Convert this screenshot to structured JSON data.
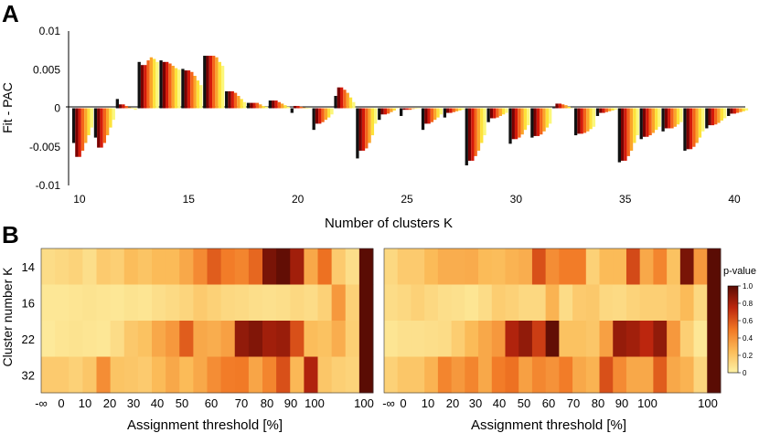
{
  "chart_data": [
    {
      "type": "bar",
      "panel_letter": "A",
      "title": "",
      "xlabel": "Number of clusters K",
      "ylabel": "Fit - PAC",
      "ylim": [
        -0.01,
        0.01
      ],
      "ytick_labels": [
        "0.01",
        "0.005",
        "0",
        "-0.005",
        "-0.01"
      ],
      "yticks": [
        0.01,
        0.005,
        0,
        -0.005,
        -0.01
      ],
      "xtick_labels": [
        "10",
        "15",
        "20",
        "25",
        "30",
        "35",
        "40"
      ],
      "xticks": [
        10,
        15,
        20,
        25,
        30,
        35,
        40
      ],
      "xlim": [
        9.5,
        40.5
      ],
      "grid": false,
      "series_colors": [
        "#111111",
        "#7a0000",
        "#d41a0a",
        "#f4641a",
        "#fba52a",
        "#fde23a",
        "#fbf77a"
      ],
      "categories": [
        10,
        11,
        12,
        13,
        14,
        15,
        16,
        17,
        18,
        19,
        20,
        21,
        22,
        23,
        24,
        25,
        26,
        27,
        28,
        29,
        30,
        31,
        32,
        33,
        34,
        35,
        36,
        37,
        38,
        39,
        40
      ],
      "values": [
        [
          -0.0045,
          -0.0063,
          -0.0063,
          -0.0055,
          -0.0045,
          -0.0035,
          -0.0025
        ],
        [
          -0.0038,
          -0.0051,
          -0.0051,
          -0.0045,
          -0.0035,
          -0.0025,
          -0.0015
        ],
        [
          0.0012,
          0.0005,
          0.0005,
          0.0003,
          0.0001,
          0.0,
          -0.0002
        ],
        [
          0.006,
          0.0056,
          0.0056,
          0.0062,
          0.0066,
          0.0064,
          0.006
        ],
        [
          0.0062,
          0.006,
          0.006,
          0.0058,
          0.0055,
          0.0052,
          0.005
        ],
        [
          0.0051,
          0.0049,
          0.0049,
          0.0047,
          0.0042,
          0.0036,
          0.003
        ],
        [
          0.0068,
          0.0068,
          0.0068,
          0.0068,
          0.0066,
          0.006,
          0.0055
        ],
        [
          0.0022,
          0.0022,
          0.0022,
          0.002,
          0.0016,
          0.0012,
          0.0008
        ],
        [
          0.0007,
          0.0007,
          0.0007,
          0.0007,
          0.0005,
          0.0003,
          0.0002
        ],
        [
          0.001,
          0.001,
          0.001,
          0.0008,
          0.0006,
          0.0004,
          0.0002
        ],
        [
          -0.0006,
          0.0003,
          0.0003,
          0.0002,
          0.0001,
          0.0,
          0.0
        ],
        [
          -0.0028,
          -0.002,
          -0.002,
          -0.0018,
          -0.0015,
          -0.0012,
          -0.0008
        ],
        [
          0.0016,
          0.0027,
          0.0027,
          0.0024,
          0.002,
          0.0014,
          0.0008
        ],
        [
          -0.0065,
          -0.0055,
          -0.0055,
          -0.0052,
          -0.0045,
          -0.0035,
          -0.002
        ],
        [
          -0.0015,
          -0.0008,
          -0.0008,
          -0.0007,
          -0.0005,
          -0.0003,
          0.0
        ],
        [
          -0.001,
          -0.0002,
          -0.0002,
          -0.0002,
          -0.0001,
          0.0,
          0.0
        ],
        [
          -0.0028,
          -0.002,
          -0.002,
          -0.0018,
          -0.0015,
          -0.0012,
          -0.0008
        ],
        [
          -0.0012,
          -0.0006,
          -0.0006,
          -0.0005,
          -0.0004,
          -0.0003,
          -0.0002
        ],
        [
          -0.0074,
          -0.0068,
          -0.0068,
          -0.0062,
          -0.0055,
          -0.0045,
          -0.0035
        ],
        [
          -0.0018,
          -0.0013,
          -0.0013,
          -0.0012,
          -0.001,
          -0.0008,
          -0.0006
        ],
        [
          -0.0046,
          -0.004,
          -0.004,
          -0.0038,
          -0.0034,
          -0.0028,
          -0.0022
        ],
        [
          -0.0038,
          -0.0036,
          -0.0036,
          -0.0034,
          -0.003,
          -0.0025,
          -0.002
        ],
        [
          0.0001,
          0.0006,
          0.0006,
          0.0005,
          0.0004,
          0.0002,
          0.0
        ],
        [
          -0.0035,
          -0.0033,
          -0.0033,
          -0.0032,
          -0.003,
          -0.0027,
          -0.0024
        ],
        [
          -0.001,
          -0.0006,
          -0.0006,
          -0.0005,
          -0.0004,
          -0.0003,
          -0.0002
        ],
        [
          -0.007,
          -0.0068,
          -0.0068,
          -0.0062,
          -0.0055,
          -0.0045,
          -0.0035
        ],
        [
          -0.004,
          -0.0037,
          -0.0037,
          -0.0035,
          -0.0032,
          -0.0028,
          -0.0024
        ],
        [
          -0.003,
          -0.0026,
          -0.0026,
          -0.0026,
          -0.0024,
          -0.0021,
          -0.0018
        ],
        [
          -0.0055,
          -0.0053,
          -0.0053,
          -0.005,
          -0.0045,
          -0.0038,
          -0.003
        ],
        [
          -0.0026,
          -0.0022,
          -0.0022,
          -0.0021,
          -0.0019,
          -0.0016,
          -0.0013
        ],
        [
          -0.001,
          -0.0007,
          -0.0007,
          -0.0006,
          -0.0005,
          -0.0004,
          -0.0003
        ]
      ]
    },
    {
      "type": "heatmap",
      "panel_letter": "B",
      "xlabel": "Assignment threshold [%]",
      "ylabel": "Cluster number K",
      "row_labels": [
        "14",
        "16",
        "22",
        "32"
      ],
      "col_tick_labels": [
        "-∞",
        "0",
        "10",
        "20",
        "30",
        "40",
        "50",
        "60",
        "70",
        "80",
        "90",
        "100"
      ],
      "colorbar": {
        "label": "p-value",
        "min": 0,
        "max": 1.0,
        "tick_labels": [
          "1.0",
          "0.8",
          "0.6",
          "0.4",
          "0.2",
          "0"
        ],
        "ticks": [
          1.0,
          0.8,
          0.6,
          0.4,
          0.2,
          0
        ]
      },
      "maps": [
        {
          "values": [
            [
              0.1,
              0.12,
              0.14,
              0.09,
              0.18,
              0.16,
              0.24,
              0.21,
              0.25,
              0.25,
              0.32,
              0.43,
              0.58,
              0.48,
              0.45,
              0.55,
              0.92,
              0.98,
              0.82,
              0.32,
              0.52,
              0.18,
              0.09,
              1.0
            ],
            [
              0.05,
              0.05,
              0.06,
              0.07,
              0.06,
              0.05,
              0.07,
              0.06,
              0.09,
              0.11,
              0.13,
              0.18,
              0.15,
              0.12,
              0.11,
              0.09,
              0.08,
              0.09,
              0.12,
              0.1,
              0.15,
              0.38,
              0.15,
              1.0
            ],
            [
              0.04,
              0.06,
              0.07,
              0.06,
              0.05,
              0.1,
              0.19,
              0.22,
              0.32,
              0.38,
              0.58,
              0.32,
              0.3,
              0.35,
              0.86,
              0.9,
              0.82,
              0.84,
              0.62,
              0.24,
              0.22,
              0.3,
              0.16,
              1.0
            ],
            [
              0.18,
              0.18,
              0.15,
              0.2,
              0.42,
              0.21,
              0.2,
              0.18,
              0.25,
              0.32,
              0.25,
              0.32,
              0.42,
              0.48,
              0.49,
              0.33,
              0.45,
              0.62,
              0.26,
              0.78,
              0.2,
              0.16,
              0.14,
              1.0
            ]
          ]
        },
        {
          "values": [
            [
              0.12,
              0.18,
              0.18,
              0.25,
              0.3,
              0.3,
              0.31,
              0.25,
              0.24,
              0.28,
              0.3,
              0.62,
              0.42,
              0.48,
              0.48,
              0.15,
              0.25,
              0.25,
              0.64,
              0.32,
              0.45,
              0.22,
              0.92,
              0.38,
              1.0
            ],
            [
              0.1,
              0.12,
              0.15,
              0.12,
              0.09,
              0.08,
              0.06,
              0.1,
              0.17,
              0.15,
              0.12,
              0.12,
              0.28,
              0.1,
              0.18,
              0.19,
              0.12,
              0.11,
              0.14,
              0.16,
              0.16,
              0.18,
              0.25,
              0.12,
              1.0
            ],
            [
              0.06,
              0.08,
              0.08,
              0.09,
              0.1,
              0.17,
              0.25,
              0.32,
              0.38,
              0.78,
              0.86,
              0.68,
              0.98,
              0.22,
              0.22,
              0.2,
              0.35,
              0.85,
              0.82,
              0.75,
              0.86,
              0.38,
              0.16,
              0.05,
              1.0
            ],
            [
              0.15,
              0.2,
              0.2,
              0.28,
              0.45,
              0.38,
              0.45,
              0.32,
              0.48,
              0.52,
              0.35,
              0.44,
              0.4,
              0.48,
              0.32,
              0.28,
              0.62,
              0.43,
              0.32,
              0.32,
              0.58,
              0.32,
              0.28,
              0.13,
              1.0
            ]
          ]
        }
      ]
    }
  ]
}
